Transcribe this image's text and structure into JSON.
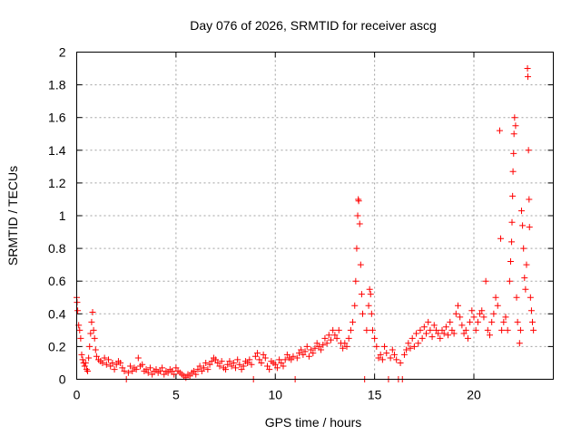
{
  "chart_data": {
    "type": "scatter",
    "title": "Day 076 of 2026, SRMTID for receiver ascg",
    "xlabel": "GPS time / hours",
    "ylabel": "SRMTID / TECUs",
    "xlim": [
      0,
      24
    ],
    "ylim": [
      0,
      2
    ],
    "xticks": [
      0,
      5,
      10,
      15,
      20
    ],
    "yticks": [
      0,
      0.2,
      0.4,
      0.6,
      0.8,
      1,
      1.2,
      1.4,
      1.6,
      1.8,
      2
    ],
    "xtick_labels": [
      "0",
      "5",
      "10",
      "15",
      "20"
    ],
    "ytick_labels": [
      "0",
      "0.2",
      "0.4",
      "0.6",
      "0.8",
      "1",
      "1.2",
      "1.4",
      "1.6",
      "1.8",
      "2"
    ],
    "grid": true,
    "marker": "+",
    "color": "#ff0000",
    "series": [
      {
        "name": "SRMTID",
        "points": [
          [
            0.0,
            0.5
          ],
          [
            0.02,
            0.47
          ],
          [
            0.05,
            0.42
          ],
          [
            0.1,
            0.33
          ],
          [
            0.15,
            0.3
          ],
          [
            0.2,
            0.25
          ],
          [
            0.25,
            0.15
          ],
          [
            0.3,
            0.12
          ],
          [
            0.35,
            0.1
          ],
          [
            0.4,
            0.08
          ],
          [
            0.45,
            0.1
          ],
          [
            0.5,
            0.06
          ],
          [
            0.55,
            0.05
          ],
          [
            0.6,
            0.13
          ],
          [
            0.65,
            0.2
          ],
          [
            0.7,
            0.28
          ],
          [
            0.75,
            0.35
          ],
          [
            0.8,
            0.41
          ],
          [
            0.85,
            0.3
          ],
          [
            0.9,
            0.25
          ],
          [
            0.95,
            0.18
          ],
          [
            1.0,
            0.14
          ],
          [
            1.1,
            0.12
          ],
          [
            1.2,
            0.11
          ],
          [
            1.3,
            0.1
          ],
          [
            1.4,
            0.13
          ],
          [
            1.5,
            0.09
          ],
          [
            1.6,
            0.12
          ],
          [
            1.7,
            0.08
          ],
          [
            1.8,
            0.1
          ],
          [
            1.9,
            0.06
          ],
          [
            2.0,
            0.09
          ],
          [
            2.1,
            0.11
          ],
          [
            2.2,
            0.1
          ],
          [
            2.3,
            0.07
          ],
          [
            2.4,
            0.05
          ],
          [
            2.5,
            0.0
          ],
          [
            2.6,
            0.04
          ],
          [
            2.7,
            0.08
          ],
          [
            2.8,
            0.05
          ],
          [
            2.9,
            0.07
          ],
          [
            3.0,
            0.06
          ],
          [
            3.1,
            0.13
          ],
          [
            3.2,
            0.08
          ],
          [
            3.3,
            0.09
          ],
          [
            3.4,
            0.05
          ],
          [
            3.5,
            0.06
          ],
          [
            3.6,
            0.04
          ],
          [
            3.7,
            0.07
          ],
          [
            3.8,
            0.03
          ],
          [
            3.9,
            0.05
          ],
          [
            4.0,
            0.06
          ],
          [
            4.1,
            0.04
          ],
          [
            4.2,
            0.05
          ],
          [
            4.3,
            0.07
          ],
          [
            4.4,
            0.03
          ],
          [
            4.5,
            0.05
          ],
          [
            4.6,
            0.04
          ],
          [
            4.7,
            0.06
          ],
          [
            4.8,
            0.05
          ],
          [
            4.9,
            0.03
          ],
          [
            5.0,
            0.07
          ],
          [
            5.1,
            0.05
          ],
          [
            5.2,
            0.04
          ],
          [
            5.3,
            0.03
          ],
          [
            5.4,
            0.02
          ],
          [
            5.5,
            0.01
          ],
          [
            5.6,
            0.03
          ],
          [
            5.7,
            0.02
          ],
          [
            5.8,
            0.04
          ],
          [
            5.9,
            0.05
          ],
          [
            6.0,
            0.03
          ],
          [
            6.1,
            0.06
          ],
          [
            6.2,
            0.08
          ],
          [
            6.3,
            0.05
          ],
          [
            6.4,
            0.07
          ],
          [
            6.5,
            0.1
          ],
          [
            6.6,
            0.06
          ],
          [
            6.7,
            0.09
          ],
          [
            6.8,
            0.11
          ],
          [
            6.9,
            0.13
          ],
          [
            7.0,
            0.12
          ],
          [
            7.1,
            0.1
          ],
          [
            7.2,
            0.08
          ],
          [
            7.3,
            0.11
          ],
          [
            7.4,
            0.07
          ],
          [
            7.5,
            0.06
          ],
          [
            7.6,
            0.09
          ],
          [
            7.7,
            0.11
          ],
          [
            7.8,
            0.08
          ],
          [
            7.9,
            0.1
          ],
          [
            8.0,
            0.07
          ],
          [
            8.1,
            0.12
          ],
          [
            8.2,
            0.09
          ],
          [
            8.3,
            0.06
          ],
          [
            8.4,
            0.08
          ],
          [
            8.5,
            0.11
          ],
          [
            8.6,
            0.1
          ],
          [
            8.7,
            0.12
          ],
          [
            8.8,
            0.09
          ],
          [
            8.9,
            0.0
          ],
          [
            9.0,
            0.14
          ],
          [
            9.1,
            0.16
          ],
          [
            9.2,
            0.12
          ],
          [
            9.3,
            0.1
          ],
          [
            9.4,
            0.15
          ],
          [
            9.5,
            0.13
          ],
          [
            9.6,
            0.08
          ],
          [
            9.7,
            0.06
          ],
          [
            9.8,
            0.11
          ],
          [
            9.9,
            0.1
          ],
          [
            10.0,
            0.09
          ],
          [
            10.1,
            0.07
          ],
          [
            10.2,
            0.12
          ],
          [
            10.3,
            0.1
          ],
          [
            10.4,
            0.08
          ],
          [
            10.5,
            0.12
          ],
          [
            10.6,
            0.15
          ],
          [
            10.7,
            0.13
          ],
          [
            10.8,
            0.12
          ],
          [
            10.9,
            0.14
          ],
          [
            11.0,
            0.0
          ],
          [
            11.1,
            0.13
          ],
          [
            11.2,
            0.16
          ],
          [
            11.3,
            0.18
          ],
          [
            11.4,
            0.15
          ],
          [
            11.5,
            0.17
          ],
          [
            11.6,
            0.2
          ],
          [
            11.7,
            0.14
          ],
          [
            11.8,
            0.18
          ],
          [
            11.9,
            0.16
          ],
          [
            12.0,
            0.19
          ],
          [
            12.1,
            0.22
          ],
          [
            12.2,
            0.2
          ],
          [
            12.3,
            0.18
          ],
          [
            12.4,
            0.21
          ],
          [
            12.5,
            0.25
          ],
          [
            12.6,
            0.22
          ],
          [
            12.7,
            0.27
          ],
          [
            12.8,
            0.24
          ],
          [
            12.9,
            0.3
          ],
          [
            13.0,
            0.27
          ],
          [
            13.1,
            0.25
          ],
          [
            13.2,
            0.3
          ],
          [
            13.3,
            0.22
          ],
          [
            13.4,
            0.19
          ],
          [
            13.5,
            0.22
          ],
          [
            13.6,
            0.2
          ],
          [
            13.7,
            0.25
          ],
          [
            13.8,
            0.3
          ],
          [
            13.9,
            0.35
          ],
          [
            14.0,
            0.45
          ],
          [
            14.05,
            0.6
          ],
          [
            14.1,
            0.8
          ],
          [
            14.15,
            1.0
          ],
          [
            14.18,
            1.1
          ],
          [
            14.2,
            1.09
          ],
          [
            14.25,
            0.95
          ],
          [
            14.3,
            0.7
          ],
          [
            14.35,
            0.52
          ],
          [
            14.4,
            0.4
          ],
          [
            14.5,
            0.0
          ],
          [
            14.6,
            0.3
          ],
          [
            14.7,
            0.45
          ],
          [
            14.75,
            0.55
          ],
          [
            14.8,
            0.52
          ],
          [
            14.85,
            0.4
          ],
          [
            14.9,
            0.3
          ],
          [
            15.0,
            0.25
          ],
          [
            15.1,
            0.2
          ],
          [
            15.2,
            0.13
          ],
          [
            15.3,
            0.15
          ],
          [
            15.4,
            0.12
          ],
          [
            15.5,
            0.2
          ],
          [
            15.6,
            0.16
          ],
          [
            15.7,
            0.0
          ],
          [
            15.8,
            0.13
          ],
          [
            15.9,
            0.18
          ],
          [
            16.0,
            0.15
          ],
          [
            16.1,
            0.12
          ],
          [
            16.2,
            0.0
          ],
          [
            16.3,
            0.1
          ],
          [
            16.4,
            0.0
          ],
          [
            16.5,
            0.15
          ],
          [
            16.6,
            0.18
          ],
          [
            16.7,
            0.22
          ],
          [
            16.8,
            0.19
          ],
          [
            16.9,
            0.25
          ],
          [
            17.0,
            0.2
          ],
          [
            17.1,
            0.28
          ],
          [
            17.2,
            0.22
          ],
          [
            17.3,
            0.3
          ],
          [
            17.4,
            0.25
          ],
          [
            17.5,
            0.32
          ],
          [
            17.6,
            0.28
          ],
          [
            17.7,
            0.35
          ],
          [
            17.8,
            0.3
          ],
          [
            17.9,
            0.26
          ],
          [
            18.0,
            0.33
          ],
          [
            18.1,
            0.3
          ],
          [
            18.2,
            0.28
          ],
          [
            18.3,
            0.25
          ],
          [
            18.4,
            0.3
          ],
          [
            18.5,
            0.28
          ],
          [
            18.6,
            0.32
          ],
          [
            18.7,
            0.27
          ],
          [
            18.8,
            0.35
          ],
          [
            18.9,
            0.3
          ],
          [
            19.0,
            0.28
          ],
          [
            19.1,
            0.4
          ],
          [
            19.2,
            0.45
          ],
          [
            19.3,
            0.38
          ],
          [
            19.4,
            0.33
          ],
          [
            19.5,
            0.28
          ],
          [
            19.6,
            0.3
          ],
          [
            19.7,
            0.25
          ],
          [
            19.8,
            0.35
          ],
          [
            19.9,
            0.42
          ],
          [
            20.0,
            0.38
          ],
          [
            20.1,
            0.3
          ],
          [
            20.2,
            0.35
          ],
          [
            20.3,
            0.4
          ],
          [
            20.4,
            0.42
          ],
          [
            20.5,
            0.38
          ],
          [
            20.6,
            0.6
          ],
          [
            20.7,
            0.3
          ],
          [
            20.8,
            0.27
          ],
          [
            20.9,
            0.35
          ],
          [
            21.0,
            0.4
          ],
          [
            21.1,
            0.5
          ],
          [
            21.2,
            0.45
          ],
          [
            21.3,
            1.52
          ],
          [
            21.35,
            0.86
          ],
          [
            21.4,
            0.3
          ],
          [
            21.5,
            0.35
          ],
          [
            21.6,
            0.38
          ],
          [
            21.7,
            0.3
          ],
          [
            21.8,
            0.6
          ],
          [
            21.85,
            0.72
          ],
          [
            21.9,
            0.84
          ],
          [
            21.92,
            0.96
          ],
          [
            21.95,
            1.12
          ],
          [
            21.97,
            1.27
          ],
          [
            22.0,
            1.38
          ],
          [
            22.02,
            1.5
          ],
          [
            22.05,
            1.6
          ],
          [
            22.1,
            1.55
          ],
          [
            22.15,
            0.5
          ],
          [
            22.2,
            0.35
          ],
          [
            22.3,
            0.22
          ],
          [
            22.35,
            0.3
          ],
          [
            22.4,
            1.03
          ],
          [
            22.45,
            0.94
          ],
          [
            22.5,
            0.8
          ],
          [
            22.55,
            0.62
          ],
          [
            22.6,
            0.55
          ],
          [
            22.65,
            0.7
          ],
          [
            22.7,
            1.9
          ],
          [
            22.72,
            1.85
          ],
          [
            22.75,
            1.4
          ],
          [
            22.78,
            1.1
          ],
          [
            22.8,
            0.93
          ],
          [
            22.85,
            0.5
          ],
          [
            22.9,
            0.42
          ],
          [
            22.95,
            0.35
          ],
          [
            23.0,
            0.3
          ]
        ]
      }
    ]
  }
}
